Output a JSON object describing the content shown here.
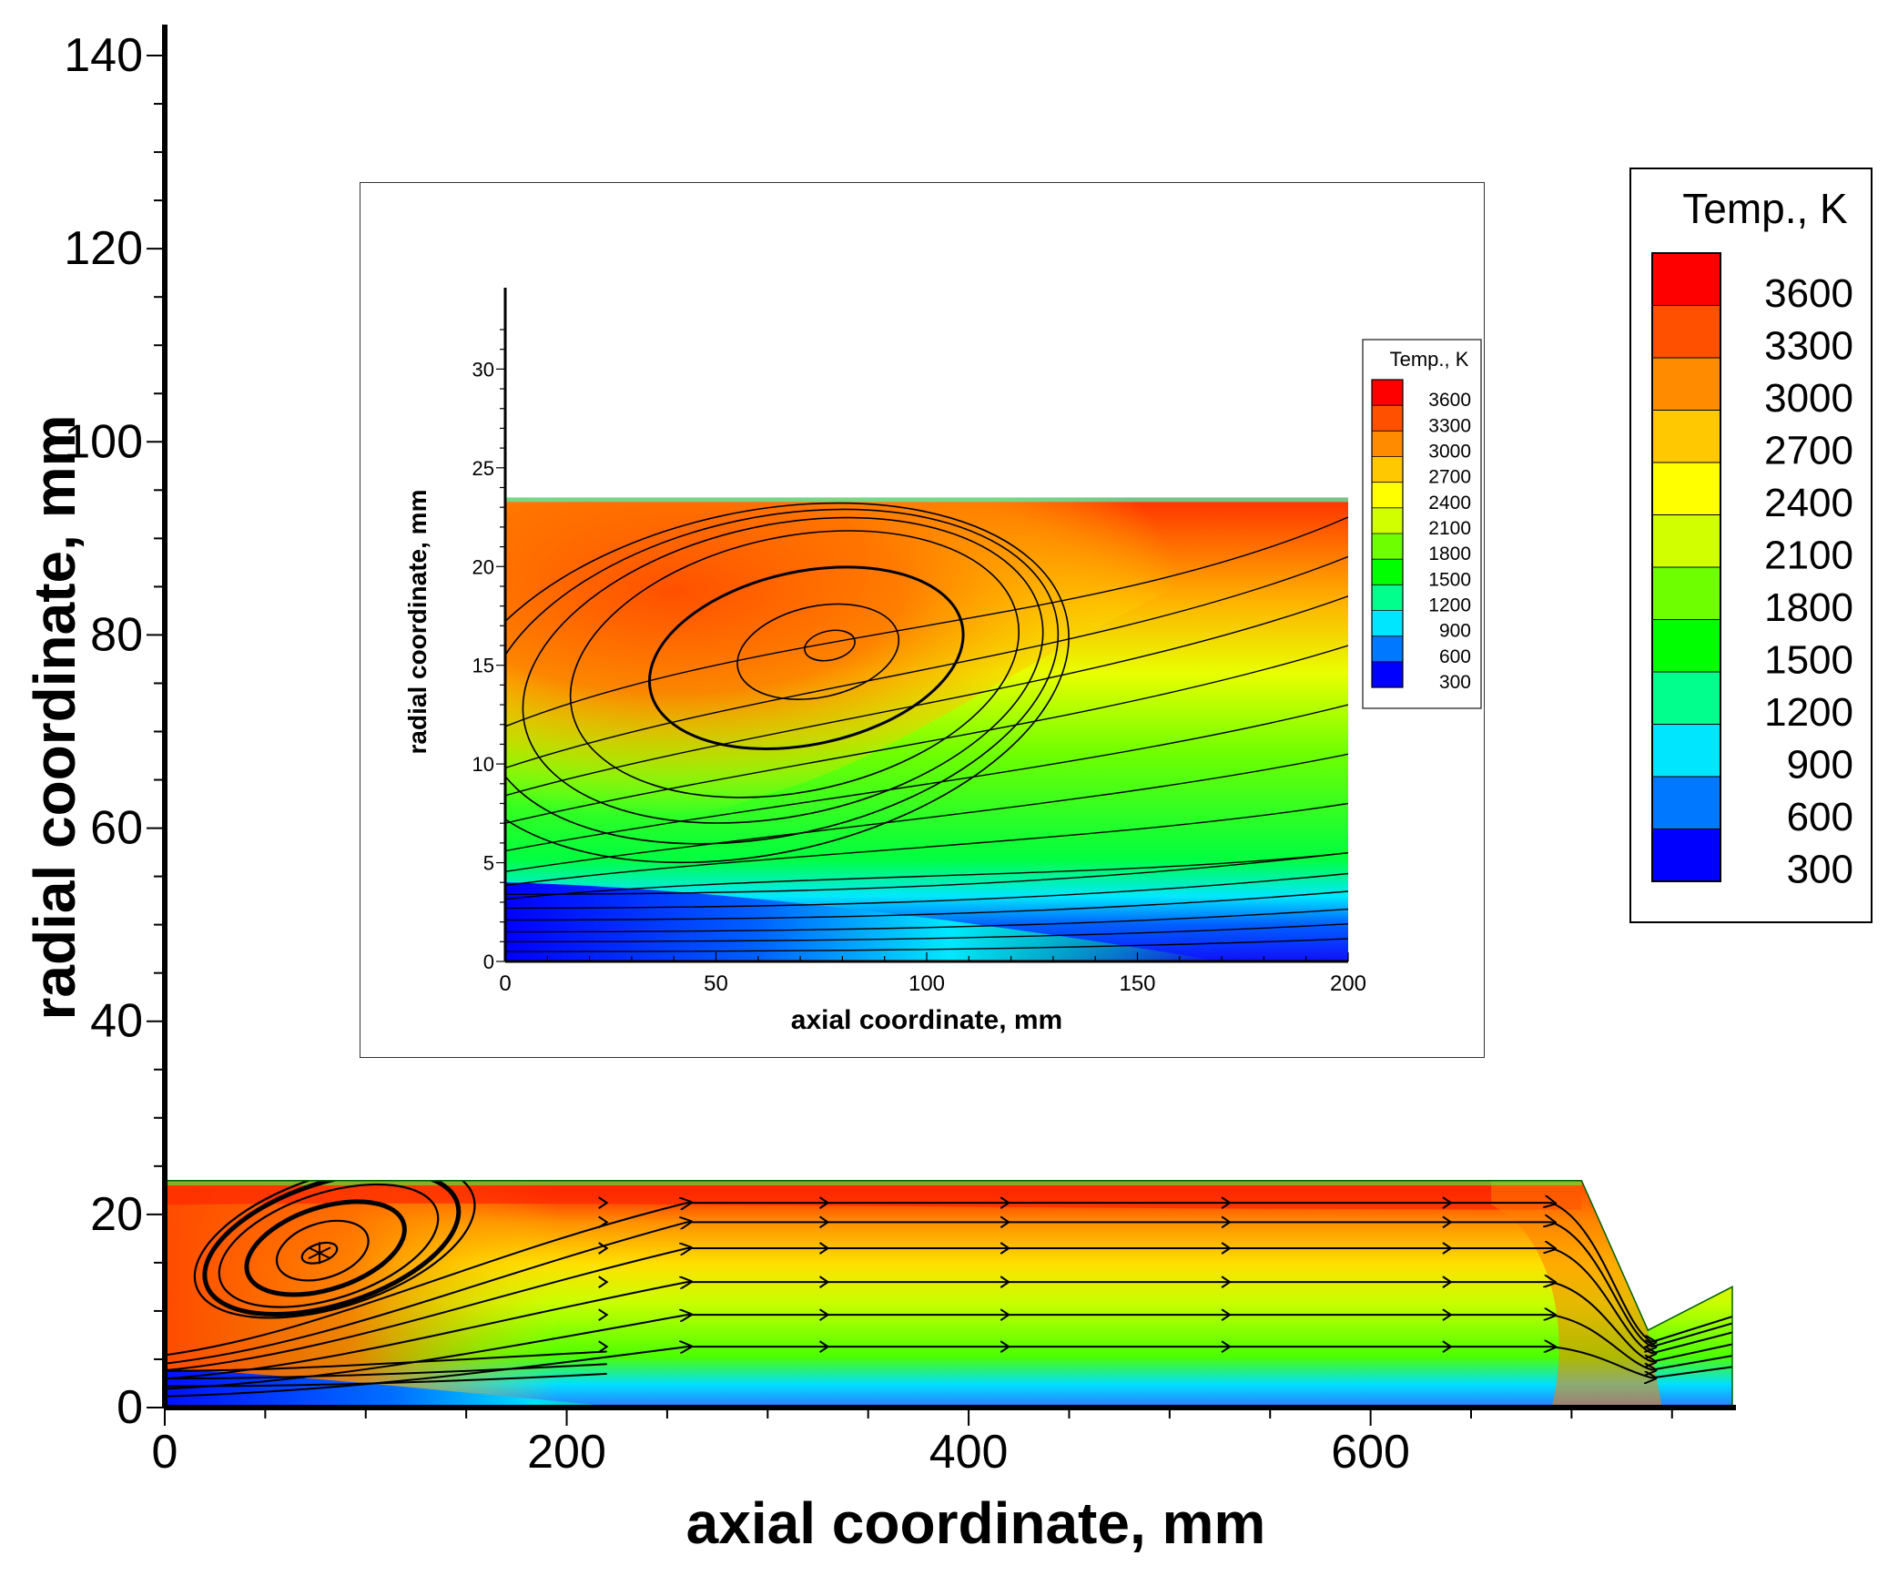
{
  "chart_data": [
    {
      "type": "heatmap",
      "subtype": "contour-with-streamlines",
      "xlabel": "axial coordinate, mm",
      "ylabel": "radial coordinate, mm",
      "xlim": [
        0,
        780
      ],
      "ylim": [
        0,
        140
      ],
      "xticks": [
        0,
        200,
        400,
        600
      ],
      "yticks": [
        0,
        20,
        40,
        60,
        80,
        100,
        120,
        140
      ],
      "domain_outline": [
        [
          0,
          0
        ],
        [
          0,
          23.5
        ],
        [
          705,
          23.5
        ],
        [
          738,
          8
        ],
        [
          780,
          12.5
        ],
        [
          780,
          0
        ]
      ],
      "recirculation_center": [
        77,
        16
      ],
      "legend": {
        "title": "Temp., K",
        "levels": [
          3600,
          3300,
          3000,
          2700,
          2400,
          2100,
          1800,
          1500,
          1200,
          900,
          600,
          300
        ],
        "placement": "right"
      }
    },
    {
      "type": "heatmap",
      "subtype": "contour-with-streamlines",
      "inset": true,
      "xlabel": "axial coordinate, mm",
      "ylabel": "radial coordinate, mm",
      "xlim": [
        0,
        200
      ],
      "ylim": [
        0,
        32
      ],
      "xticks": [
        0,
        50,
        100,
        150,
        200
      ],
      "yticks": [
        0,
        5,
        10,
        15,
        20,
        25,
        30
      ],
      "domain_top": 23.5,
      "recirculation_center": [
        77,
        16
      ],
      "legend": {
        "title": "Temp., K",
        "levels": [
          3600,
          3300,
          3000,
          2700,
          2400,
          2100,
          1800,
          1500,
          1200,
          900,
          600,
          300
        ],
        "placement": "top-right"
      }
    }
  ],
  "colorscale": [
    "#0000ff",
    "#0078ff",
    "#00e6ff",
    "#00ff8c",
    "#00ff00",
    "#6eff00",
    "#d2ff00",
    "#ffff00",
    "#ffc800",
    "#ff8c00",
    "#ff5000",
    "#ff0000"
  ]
}
